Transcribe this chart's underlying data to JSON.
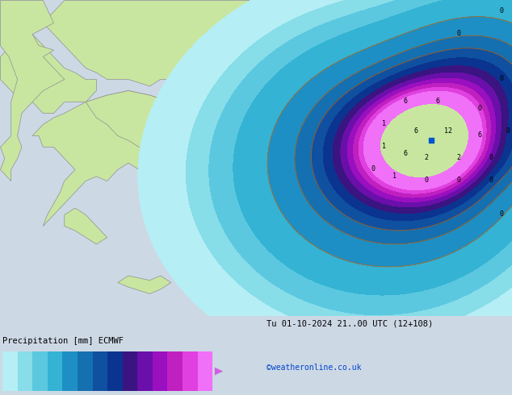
{
  "title_left": "Precipitation [mm] ECMWF",
  "title_right": "Tu 01-10-2024 21..00 UTC (12+108)",
  "credit": "©weatheronline.co.uk",
  "colorbar_levels": [
    0.1,
    0.5,
    1,
    2,
    5,
    10,
    15,
    20,
    25,
    30,
    35,
    40,
    45,
    50
  ],
  "colorbar_colors": [
    "#b5eef5",
    "#87dde8",
    "#5bc8e0",
    "#34b3d4",
    "#1e8fc4",
    "#1470b0",
    "#0f50a0",
    "#0a3490",
    "#3a1480",
    "#6a0faa",
    "#9a0fc0",
    "#c020c0",
    "#e040e0",
    "#f070f8"
  ],
  "bg_color": "#cdd8e5",
  "land_color": "#c8e6a0",
  "border_color": "#909090",
  "sea_color": "#cdd8e5",
  "fig_width": 6.34,
  "fig_height": 4.9,
  "dpi": 100
}
